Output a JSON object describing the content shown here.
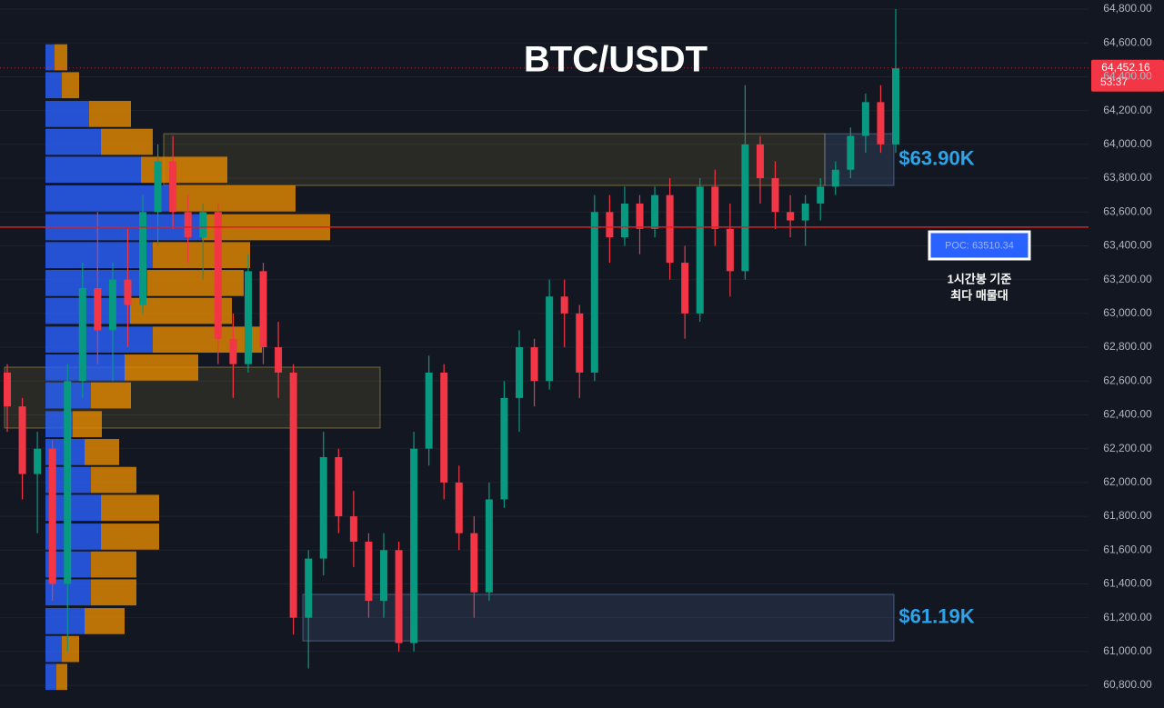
{
  "chart_data": {
    "type": "candlestick",
    "title": "BTC/USDT",
    "ylim": [
      60666,
      64854
    ],
    "yticks": [
      {
        "value": 60800,
        "label": "60,800.00"
      },
      {
        "value": 61000,
        "label": "61,000.00"
      },
      {
        "value": 61200,
        "label": "61,200.00"
      },
      {
        "value": 61400,
        "label": "61,400.00"
      },
      {
        "value": 61600,
        "label": "61,600.00"
      },
      {
        "value": 61800,
        "label": "61,800.00"
      },
      {
        "value": 62000,
        "label": "62,000.00"
      },
      {
        "value": 62200,
        "label": "62,200.00"
      },
      {
        "value": 62400,
        "label": "62,400.00"
      },
      {
        "value": 62600,
        "label": "62,600.00"
      },
      {
        "value": 62800,
        "label": "62,800.00"
      },
      {
        "value": 63000,
        "label": "63,000.00"
      },
      {
        "value": 63200,
        "label": "63,200.00"
      },
      {
        "value": 63400,
        "label": "63,400.00"
      },
      {
        "value": 63600,
        "label": "63,600.00"
      },
      {
        "value": 63800,
        "label": "63,800.00"
      },
      {
        "value": 64000,
        "label": "64,000.00"
      },
      {
        "value": 64200,
        "label": "64,200.00"
      },
      {
        "value": 64400,
        "label": "64,400.00"
      },
      {
        "value": 64600,
        "label": "64,600.00"
      },
      {
        "value": 64800,
        "label": "64,800.00"
      }
    ],
    "up_color": "#089981",
    "down_color": "#f23645",
    "open": [
      62650,
      62450,
      62050,
      62200,
      61400,
      62600,
      63150,
      62900,
      63200,
      63050,
      63600,
      63900,
      63600,
      63450,
      63600,
      62850,
      62700,
      63250,
      62800,
      62650,
      61200,
      61550,
      62150,
      61800,
      61650,
      61300,
      61600,
      61050,
      62200,
      62650,
      62000,
      61700,
      61350,
      61900,
      62500,
      62800,
      62600,
      63100,
      63000,
      62650,
      63600,
      63450,
      63650,
      63500,
      63700,
      63300,
      63000,
      63750,
      63500,
      63250,
      64000,
      63800,
      63600,
      63550,
      63650,
      63750,
      63850,
      64050,
      64250,
      64000
    ],
    "high": [
      62700,
      62500,
      62300,
      62250,
      62700,
      63300,
      63600,
      63300,
      63500,
      63700,
      64000,
      64050,
      63700,
      63650,
      63650,
      63000,
      63350,
      63300,
      62950,
      62700,
      61600,
      62300,
      62200,
      61950,
      61700,
      61700,
      61650,
      62300,
      62750,
      62700,
      62100,
      61800,
      62000,
      62600,
      62900,
      62850,
      63200,
      63200,
      63050,
      63700,
      63700,
      63750,
      63700,
      63750,
      63800,
      63400,
      63800,
      63850,
      63650,
      64350,
      64050,
      63900,
      63700,
      63700,
      63800,
      63900,
      64100,
      64300,
      64350,
      64800
    ],
    "low": [
      62300,
      61900,
      61700,
      61300,
      61000,
      62500,
      62700,
      62600,
      62800,
      63000,
      63400,
      63500,
      63300,
      63200,
      62700,
      62500,
      62650,
      62700,
      62500,
      61100,
      60900,
      61450,
      61700,
      61500,
      61200,
      61200,
      61000,
      61000,
      62100,
      61900,
      61600,
      61200,
      61300,
      61850,
      62300,
      62450,
      62550,
      62800,
      62500,
      62600,
      63300,
      63400,
      63350,
      63450,
      63200,
      62850,
      62950,
      63400,
      63100,
      63200,
      63650,
      63500,
      63450,
      63400,
      63550,
      63700,
      63800,
      63950,
      63950,
      63950
    ],
    "close": [
      62450,
      62050,
      62200,
      61400,
      62600,
      63150,
      62900,
      63200,
      63050,
      63600,
      63900,
      63600,
      63450,
      63600,
      62850,
      62700,
      63250,
      62800,
      62650,
      61200,
      61550,
      62150,
      61800,
      61650,
      61300,
      61600,
      61050,
      62200,
      62650,
      62000,
      61700,
      61350,
      61900,
      62500,
      62800,
      62600,
      63100,
      63000,
      62650,
      63600,
      63450,
      63650,
      63500,
      63700,
      63300,
      63000,
      63750,
      63500,
      63250,
      64000,
      63800,
      63600,
      63550,
      63650,
      63750,
      63850,
      64050,
      64250,
      64000,
      64450
    ],
    "volume_profile": {
      "levels": [
        64515,
        64350,
        64180,
        64015,
        63850,
        63680,
        63510,
        63345,
        63180,
        63015,
        62845,
        62680,
        62515,
        62345,
        62180,
        62015,
        61850,
        61680,
        61515,
        61350,
        61180,
        61015,
        60850
      ],
      "buy": [
        10,
        18,
        48,
        61,
        105,
        143,
        172,
        118,
        112,
        93,
        118,
        87,
        50,
        30,
        43,
        50,
        61,
        61,
        50,
        50,
        43,
        18,
        12
      ],
      "sell": [
        14,
        19,
        46,
        57,
        95,
        132,
        141,
        107,
        106,
        112,
        120,
        81,
        44,
        32,
        38,
        50,
        64,
        64,
        50,
        50,
        44,
        19,
        12
      ],
      "buy_color": "#2962ff",
      "sell_color": "#e68a00"
    },
    "zones": [
      {
        "low": 63757,
        "high": 64063,
        "label": "$63.90K"
      },
      {
        "low": 61063,
        "high": 61338,
        "label": "$61.19K"
      },
      {
        "low": 62322,
        "high": 62682
      }
    ],
    "poc": {
      "value": 63510.34,
      "label": "POC: 63510.34",
      "note": [
        "1시간봉 기준",
        "최다 매물대"
      ]
    },
    "last_price": {
      "value": 64452.16,
      "label": "64,452.16",
      "countdown": "53:37"
    }
  }
}
